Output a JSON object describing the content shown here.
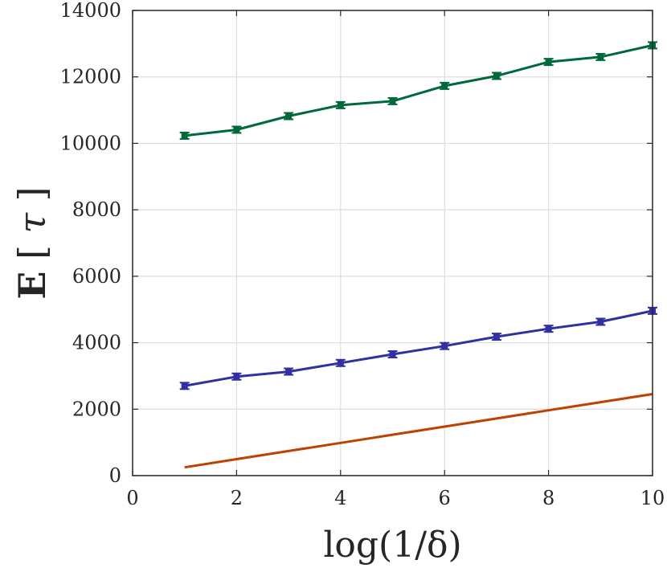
{
  "chart_data": {
    "type": "line",
    "title": "",
    "xlabel": "log(1/δ)",
    "ylabel": "E[τ]",
    "ylabel_parts": [
      "E",
      "[",
      "τ",
      "]"
    ],
    "xlim": [
      0,
      10
    ],
    "ylim": [
      0,
      14000
    ],
    "xticks": [
      0,
      2,
      4,
      6,
      8,
      10
    ],
    "yticks": [
      0,
      2000,
      4000,
      6000,
      8000,
      10000,
      12000,
      14000
    ],
    "xtick_labels": [
      "0",
      "2",
      "4",
      "6",
      "8",
      "10"
    ],
    "ytick_labels": [
      "0",
      "2000",
      "4000",
      "6000",
      "8000",
      "10000",
      "12000",
      "14000"
    ],
    "grid": true,
    "legend": null,
    "x": [
      1,
      2,
      3,
      4,
      5,
      6,
      7,
      8,
      9,
      10
    ],
    "series": [
      {
        "name": "green-series",
        "color": "#00693c",
        "markers": true,
        "values": [
          10230,
          10410,
          10820,
          11150,
          11270,
          11730,
          12030,
          12450,
          12600,
          12950
        ]
      },
      {
        "name": "blue-series",
        "color": "#3030a0",
        "markers": true,
        "values": [
          2700,
          2980,
          3130,
          3390,
          3650,
          3900,
          4180,
          4420,
          4630,
          4960
        ]
      },
      {
        "name": "orange-series",
        "color": "#c04000",
        "markers": false,
        "values": [
          250,
          495,
          740,
          985,
          1230,
          1475,
          1720,
          1965,
          2210,
          2455
        ]
      }
    ]
  }
}
